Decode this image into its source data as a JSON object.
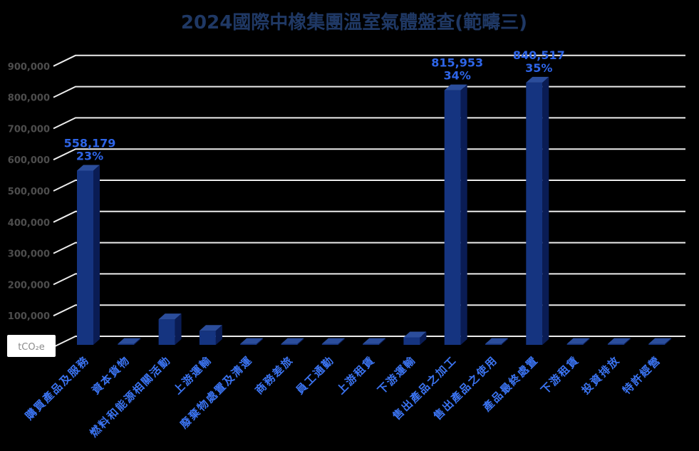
{
  "title": "2024國際中橡集團溫室氣體盤查(範疇三)",
  "unit_label": "tCO₂e",
  "colors": {
    "background": "#000000",
    "title": "#1F3864",
    "gridline": "#ECECEC",
    "tick_label": "#4D4D4D",
    "bar_front": "#153480",
    "bar_top": "#2B4D9B",
    "bar_side": "#0A1C54",
    "category_label": "#3B74F2",
    "data_label": "#2E65E8",
    "unit_box_bg": "#FFFFFF",
    "unit_box_text": "#8C8C8C"
  },
  "y_axis": {
    "tick_labels": [
      "100,000",
      "200,000",
      "300,000",
      "400,000",
      "500,000",
      "600,000",
      "700,000",
      "800,000",
      "900,000"
    ],
    "min": 0,
    "max": 900000,
    "step": 100000
  },
  "chart_data": {
    "type": "bar",
    "style": "3d-column",
    "title": "2024國際中橡集團溫室氣體盤查(範疇三)",
    "xlabel": "",
    "ylabel": "tCO₂e",
    "ylim": [
      0,
      900000
    ],
    "grid": true,
    "legend": false,
    "categories": [
      "購買產品及服務",
      "資本貨物",
      "燃料和能源相關活動",
      "上游運輸",
      "廢棄物處置及清運",
      "商務差旅",
      "員工通勤",
      "上游租賃",
      "下游運輸",
      "售出產品之加工",
      "售出產品之使用",
      "產品最終處置",
      "下游租賃",
      "投資排放",
      "特許經營"
    ],
    "values": [
      558179,
      0,
      82000,
      45000,
      0,
      0,
      0,
      0,
      24000,
      815953,
      0,
      840517,
      0,
      0,
      0
    ],
    "data_labels": [
      {
        "category_index": 0,
        "value": "558,179",
        "percent": "23%"
      },
      {
        "category_index": 9,
        "value": "815,953",
        "percent": "34%"
      },
      {
        "category_index": 11,
        "value": "840,517",
        "percent": "35%"
      }
    ]
  }
}
